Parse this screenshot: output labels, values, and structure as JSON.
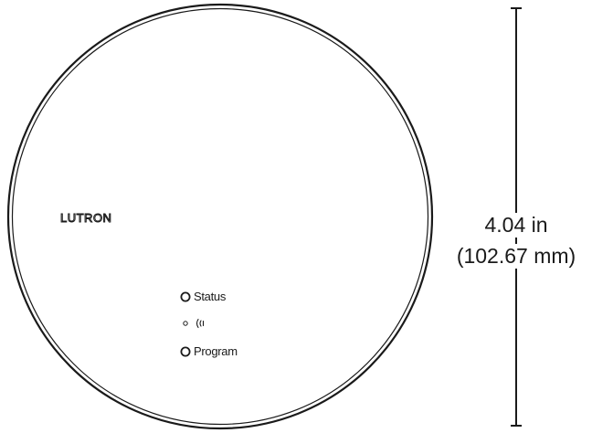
{
  "device": {
    "brand": "LUTRON",
    "status_label": "Status",
    "program_label": "Program",
    "wireless_icon": "wireless-signal-icon"
  },
  "dimension": {
    "inches": "4.04 in",
    "millimeters": "(102.67 mm)"
  },
  "colors": {
    "outline": "#1a1a1a",
    "background": "#ffffff"
  }
}
